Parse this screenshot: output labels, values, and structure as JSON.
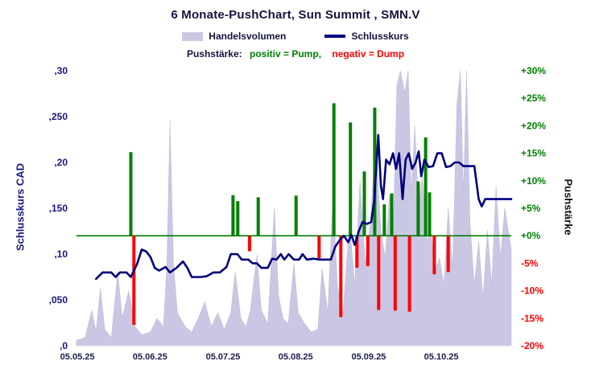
{
  "title": "6 Monate-PushChart,  Sun Summit , SMN.V",
  "legend": {
    "volume_label": "Handelsvolumen",
    "close_label": "Schlusskurs"
  },
  "subtitle": {
    "prefix": "Pushstärke:",
    "positive": "positiv = Pump,",
    "negative": "negativ = Dump"
  },
  "colors": {
    "navy": "#14143f",
    "axis_blue": "#16167d",
    "line": "#00007d",
    "volume_fill": "#c9c7e3",
    "positive": "#008000",
    "negative": "#ff0000",
    "zero_line": "#008000"
  },
  "axes": {
    "left_title": "Schlusskurs CAD",
    "right_title": "Pushstärke",
    "left_ticks": [
      ",30",
      ",250",
      ",20",
      ",150",
      ",10",
      ",050",
      ",0"
    ],
    "left_tick_values": [
      0.3,
      0.25,
      0.2,
      0.15,
      0.1,
      0.05,
      0
    ],
    "right_ticks": [
      "+30%",
      "+25%",
      "+20%",
      "+15%",
      "+10%",
      "+5%",
      "+0%",
      "-5%",
      "-10%",
      "-15%",
      "-20%"
    ],
    "right_tick_values": [
      30,
      25,
      20,
      15,
      10,
      5,
      0,
      -5,
      -10,
      -15,
      -20
    ]
  },
  "chart_data": {
    "type": "composite",
    "title": "6 Monate-PushChart, Sun Summit, SMN.V",
    "x_axis": {
      "unit": "date",
      "ticks": [
        "05.05.25",
        "05.06.25",
        "05.07.25",
        "05.08.25",
        "05.09.25",
        "05.10.25"
      ],
      "tick_positions": [
        0.002,
        0.169,
        0.337,
        0.504,
        0.672,
        0.839
      ],
      "note": "t is the fraction of the 6-month span 05.05.25 to 05.11.25"
    },
    "left_axis": {
      "label": "Schlusskurs CAD",
      "min": 0,
      "max": 0.3
    },
    "right_axis": {
      "label": "Pushstärke",
      "min": -20,
      "max": 30,
      "unit": "%"
    },
    "zero_line": {
      "axis": "right",
      "value": 0,
      "color": "#008000"
    },
    "series": [
      {
        "name": "Handelsvolumen",
        "type": "area",
        "color": "#c9c7e3",
        "unit": "relative height 0-1 of plot (volume axis unlabeled)",
        "points": [
          [
            0,
            0.02
          ],
          [
            0.02,
            0.03
          ],
          [
            0.035,
            0.13
          ],
          [
            0.045,
            0.05
          ],
          [
            0.055,
            0.21
          ],
          [
            0.065,
            0.06
          ],
          [
            0.08,
            0.03
          ],
          [
            0.095,
            0.27
          ],
          [
            0.105,
            0.1
          ],
          [
            0.12,
            0.2
          ],
          [
            0.135,
            0.07
          ],
          [
            0.15,
            0.04
          ],
          [
            0.17,
            0.05
          ],
          [
            0.185,
            0.1
          ],
          [
            0.2,
            0.07
          ],
          [
            0.208,
            0.3
          ],
          [
            0.215,
            0.82
          ],
          [
            0.223,
            0.3
          ],
          [
            0.232,
            0.12
          ],
          [
            0.25,
            0.07
          ],
          [
            0.265,
            0.05
          ],
          [
            0.28,
            0.1
          ],
          [
            0.295,
            0.16
          ],
          [
            0.31,
            0.07
          ],
          [
            0.325,
            0.12
          ],
          [
            0.34,
            0.06
          ],
          [
            0.355,
            0.12
          ],
          [
            0.365,
            0.27
          ],
          [
            0.378,
            0.1
          ],
          [
            0.39,
            0.07
          ],
          [
            0.4,
            0.13
          ],
          [
            0.415,
            0.33
          ],
          [
            0.425,
            0.13
          ],
          [
            0.44,
            0.08
          ],
          [
            0.455,
            0.5
          ],
          [
            0.465,
            0.18
          ],
          [
            0.475,
            0.1
          ],
          [
            0.487,
            0.08
          ],
          [
            0.5,
            0.3
          ],
          [
            0.51,
            0.12
          ],
          [
            0.525,
            0.08
          ],
          [
            0.54,
            0.05
          ],
          [
            0.555,
            0.06
          ],
          [
            0.565,
            0.28
          ],
          [
            0.578,
            0.12
          ],
          [
            0.59,
            0.55
          ],
          [
            0.6,
            0.22
          ],
          [
            0.613,
            0.12
          ],
          [
            0.628,
            0.45
          ],
          [
            0.64,
            0.22
          ],
          [
            0.652,
            0.6
          ],
          [
            0.664,
            0.3
          ],
          [
            0.676,
            0.45
          ],
          [
            0.688,
            0.75
          ],
          [
            0.7,
            0.42
          ],
          [
            0.71,
            0.32
          ],
          [
            0.72,
            0.55
          ],
          [
            0.728,
            0.38
          ],
          [
            0.737,
            0.95
          ],
          [
            0.745,
            1
          ],
          [
            0.755,
            0.92
          ],
          [
            0.763,
            1
          ],
          [
            0.77,
            0.55
          ],
          [
            0.778,
            0.8
          ],
          [
            0.787,
            0.48
          ],
          [
            0.795,
            0.62
          ],
          [
            0.805,
            0.38
          ],
          [
            0.815,
            0.42
          ],
          [
            0.825,
            0.27
          ],
          [
            0.835,
            0.32
          ],
          [
            0.845,
            0.22
          ],
          [
            0.855,
            0.5
          ],
          [
            0.865,
            0.28
          ],
          [
            0.875,
            0.88
          ],
          [
            0.883,
            1
          ],
          [
            0.89,
            0.55
          ],
          [
            0.897,
            1
          ],
          [
            0.905,
            0.45
          ],
          [
            0.915,
            0.22
          ],
          [
            0.925,
            0.38
          ],
          [
            0.935,
            0.17
          ],
          [
            0.945,
            0.42
          ],
          [
            0.955,
            0.22
          ],
          [
            0.965,
            0.58
          ],
          [
            0.975,
            0.32
          ],
          [
            0.985,
            0.5
          ],
          [
            1,
            0.35
          ]
        ]
      },
      {
        "name": "Schlusskurs",
        "type": "line",
        "axis": "left",
        "color": "#00007d",
        "unit": "CAD",
        "points": [
          [
            0.045,
            0.073
          ],
          [
            0.06,
            0.08
          ],
          [
            0.08,
            0.08
          ],
          [
            0.09,
            0.075
          ],
          [
            0.1,
            0.08
          ],
          [
            0.115,
            0.08
          ],
          [
            0.125,
            0.075
          ],
          [
            0.14,
            0.09
          ],
          [
            0.15,
            0.105
          ],
          [
            0.16,
            0.103
          ],
          [
            0.17,
            0.097
          ],
          [
            0.18,
            0.085
          ],
          [
            0.19,
            0.082
          ],
          [
            0.205,
            0.086
          ],
          [
            0.215,
            0.08
          ],
          [
            0.23,
            0.085
          ],
          [
            0.245,
            0.092
          ],
          [
            0.255,
            0.085
          ],
          [
            0.265,
            0.075
          ],
          [
            0.285,
            0.075
          ],
          [
            0.3,
            0.076
          ],
          [
            0.315,
            0.08
          ],
          [
            0.33,
            0.08
          ],
          [
            0.345,
            0.086
          ],
          [
            0.355,
            0.1
          ],
          [
            0.37,
            0.1
          ],
          [
            0.38,
            0.094
          ],
          [
            0.395,
            0.094
          ],
          [
            0.405,
            0.09
          ],
          [
            0.415,
            0.09
          ],
          [
            0.425,
            0.085
          ],
          [
            0.44,
            0.085
          ],
          [
            0.45,
            0.095
          ],
          [
            0.46,
            0.094
          ],
          [
            0.47,
            0.1
          ],
          [
            0.478,
            0.094
          ],
          [
            0.488,
            0.1
          ],
          [
            0.5,
            0.094
          ],
          [
            0.512,
            0.094
          ],
          [
            0.52,
            0.1
          ],
          [
            0.53,
            0.094
          ],
          [
            0.545,
            0.095
          ],
          [
            0.56,
            0.094
          ],
          [
            0.575,
            0.094
          ],
          [
            0.585,
            0.094
          ],
          [
            0.595,
            0.108
          ],
          [
            0.605,
            0.115
          ],
          [
            0.615,
            0.12
          ],
          [
            0.625,
            0.113
          ],
          [
            0.632,
            0.121
          ],
          [
            0.64,
            0.11
          ],
          [
            0.65,
            0.126
          ],
          [
            0.658,
            0.135
          ],
          [
            0.668,
            0.133
          ],
          [
            0.678,
            0.135
          ],
          [
            0.685,
            0.16
          ],
          [
            0.694,
            0.23
          ],
          [
            0.7,
            0.175
          ],
          [
            0.705,
            0.16
          ],
          [
            0.712,
            0.203
          ],
          [
            0.72,
            0.198
          ],
          [
            0.728,
            0.21
          ],
          [
            0.735,
            0.193
          ],
          [
            0.742,
            0.21
          ],
          [
            0.75,
            0.16
          ],
          [
            0.757,
            0.203
          ],
          [
            0.764,
            0.21
          ],
          [
            0.772,
            0.193
          ],
          [
            0.78,
            0.2
          ],
          [
            0.787,
            0.212
          ],
          [
            0.793,
            0.185
          ],
          [
            0.8,
            0.203
          ],
          [
            0.81,
            0.195
          ],
          [
            0.82,
            0.196
          ],
          [
            0.83,
            0.21
          ],
          [
            0.84,
            0.21
          ],
          [
            0.85,
            0.195
          ],
          [
            0.86,
            0.196
          ],
          [
            0.87,
            0.2
          ],
          [
            0.88,
            0.2
          ],
          [
            0.89,
            0.196
          ],
          [
            0.9,
            0.196
          ],
          [
            0.915,
            0.196
          ],
          [
            0.925,
            0.16
          ],
          [
            0.932,
            0.152
          ],
          [
            0.94,
            0.16
          ],
          [
            0.96,
            0.16
          ],
          [
            0.98,
            0.16
          ],
          [
            1,
            0.16
          ]
        ]
      },
      {
        "name": "Pushstärke",
        "type": "bar",
        "axis": "right",
        "positive_color": "#008000",
        "negative_color": "#ff0000",
        "unit": "%",
        "points": [
          [
            0.125,
            15.2
          ],
          [
            0.132,
            -16.2
          ],
          [
            0.36,
            7.4
          ],
          [
            0.371,
            6.3
          ],
          [
            0.398,
            -2.8
          ],
          [
            0.418,
            7
          ],
          [
            0.505,
            7.3
          ],
          [
            0.558,
            -4.1
          ],
          [
            0.592,
            24.1
          ],
          [
            0.608,
            -14.8
          ],
          [
            0.63,
            20.6
          ],
          [
            0.645,
            -5.8
          ],
          [
            0.662,
            11.7
          ],
          [
            0.67,
            -5.5
          ],
          [
            0.686,
            23.3
          ],
          [
            0.695,
            -13.5
          ],
          [
            0.708,
            5.7
          ],
          [
            0.725,
            7.7
          ],
          [
            0.733,
            -13.6
          ],
          [
            0.766,
            -13.8
          ],
          [
            0.786,
            9.9
          ],
          [
            0.803,
            17.9
          ],
          [
            0.812,
            7.9
          ],
          [
            0.823,
            -7
          ],
          [
            0.855,
            -6.6
          ]
        ]
      }
    ]
  }
}
